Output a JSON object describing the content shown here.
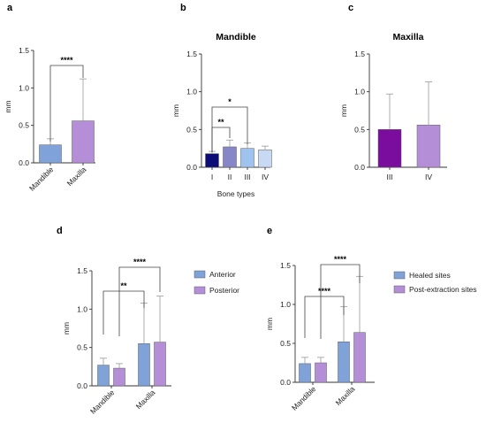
{
  "panels": {
    "a": "a",
    "b": "b",
    "c": "c",
    "d": "d",
    "e": "e"
  },
  "chart_data": [
    {
      "panel": "a",
      "type": "bar",
      "title": "",
      "xlabel": "",
      "ylabel": "mm",
      "ylim": [
        0,
        1.5
      ],
      "yticks": [
        "0.0",
        "0.5",
        "1.0",
        "1.5"
      ],
      "categories": [
        "Mandible",
        "Maxilla"
      ],
      "values": [
        0.24,
        0.56
      ],
      "errors": [
        0.08,
        0.56
      ],
      "colors": [
        "#7fa2d9",
        "#b48fd8"
      ],
      "significance": [
        {
          "from": 0,
          "to": 1,
          "label": "****"
        }
      ]
    },
    {
      "panel": "b",
      "type": "bar",
      "title": "Mandible",
      "xlabel": "Bone types",
      "ylabel": "mm",
      "ylim": [
        0,
        1.5
      ],
      "yticks": [
        "0.0",
        "0.5",
        "1.0",
        "1.5"
      ],
      "categories": [
        "I",
        "II",
        "III",
        "IV"
      ],
      "values": [
        0.18,
        0.27,
        0.25,
        0.23
      ],
      "errors": [
        0.03,
        0.09,
        0.07,
        0.05
      ],
      "colors": [
        "#0c0c78",
        "#8787c8",
        "#9dc3ee",
        "#c8daf3"
      ],
      "significance": [
        {
          "from": 0,
          "to": 2,
          "label": "*"
        },
        {
          "from": 0,
          "to": 1,
          "label": "**"
        }
      ]
    },
    {
      "panel": "c",
      "type": "bar",
      "title": "Maxilla",
      "xlabel": "",
      "ylabel": "mm",
      "ylim": [
        0,
        1.5
      ],
      "yticks": [
        "0.0",
        "0.5",
        "1.0",
        "1.5"
      ],
      "categories": [
        "III",
        "IV"
      ],
      "values": [
        0.5,
        0.56
      ],
      "errors": [
        0.47,
        0.57
      ],
      "colors": [
        "#7a0d9e",
        "#b48fd8"
      ],
      "significance": []
    },
    {
      "panel": "d",
      "type": "bar",
      "title": "",
      "xlabel": "",
      "ylabel": "mm",
      "ylim": [
        0,
        1.5
      ],
      "yticks": [
        "0.0",
        "0.5",
        "1.0",
        "1.5"
      ],
      "categories": [
        "Mandible",
        "Maxilla"
      ],
      "series": [
        {
          "name": "Anterior",
          "values": [
            0.27,
            0.55
          ],
          "errors": [
            0.09,
            0.53
          ],
          "color": "#7fa2d9"
        },
        {
          "name": "Posterior",
          "values": [
            0.23,
            0.57
          ],
          "errors": [
            0.06,
            0.6
          ],
          "color": "#b48fd8"
        }
      ],
      "legend": "right",
      "significance": [
        {
          "from": "Mandible",
          "to": "Maxilla",
          "label": "**"
        },
        {
          "from": "Mandible",
          "to": "Maxilla",
          "label": "****"
        }
      ]
    },
    {
      "panel": "e",
      "type": "bar",
      "title": "",
      "xlabel": "",
      "ylabel": "mm",
      "ylim": [
        0,
        1.5
      ],
      "yticks": [
        "0.0",
        "0.5",
        "1.0",
        "1.5"
      ],
      "categories": [
        "Mandible",
        "Maxilla"
      ],
      "series": [
        {
          "name": "Healed sites",
          "values": [
            0.24,
            0.52
          ],
          "errors": [
            0.08,
            0.45
          ],
          "color": "#7fa2d9"
        },
        {
          "name": "Post-extraction sites",
          "values": [
            0.25,
            0.64
          ],
          "errors": [
            0.07,
            0.72
          ],
          "color": "#b48fd8"
        }
      ],
      "legend": "right",
      "significance": [
        {
          "from": "Mandible",
          "to": "Maxilla",
          "label": "****"
        },
        {
          "from": "Mandible",
          "to": "Maxilla",
          "label": "****"
        }
      ]
    }
  ]
}
